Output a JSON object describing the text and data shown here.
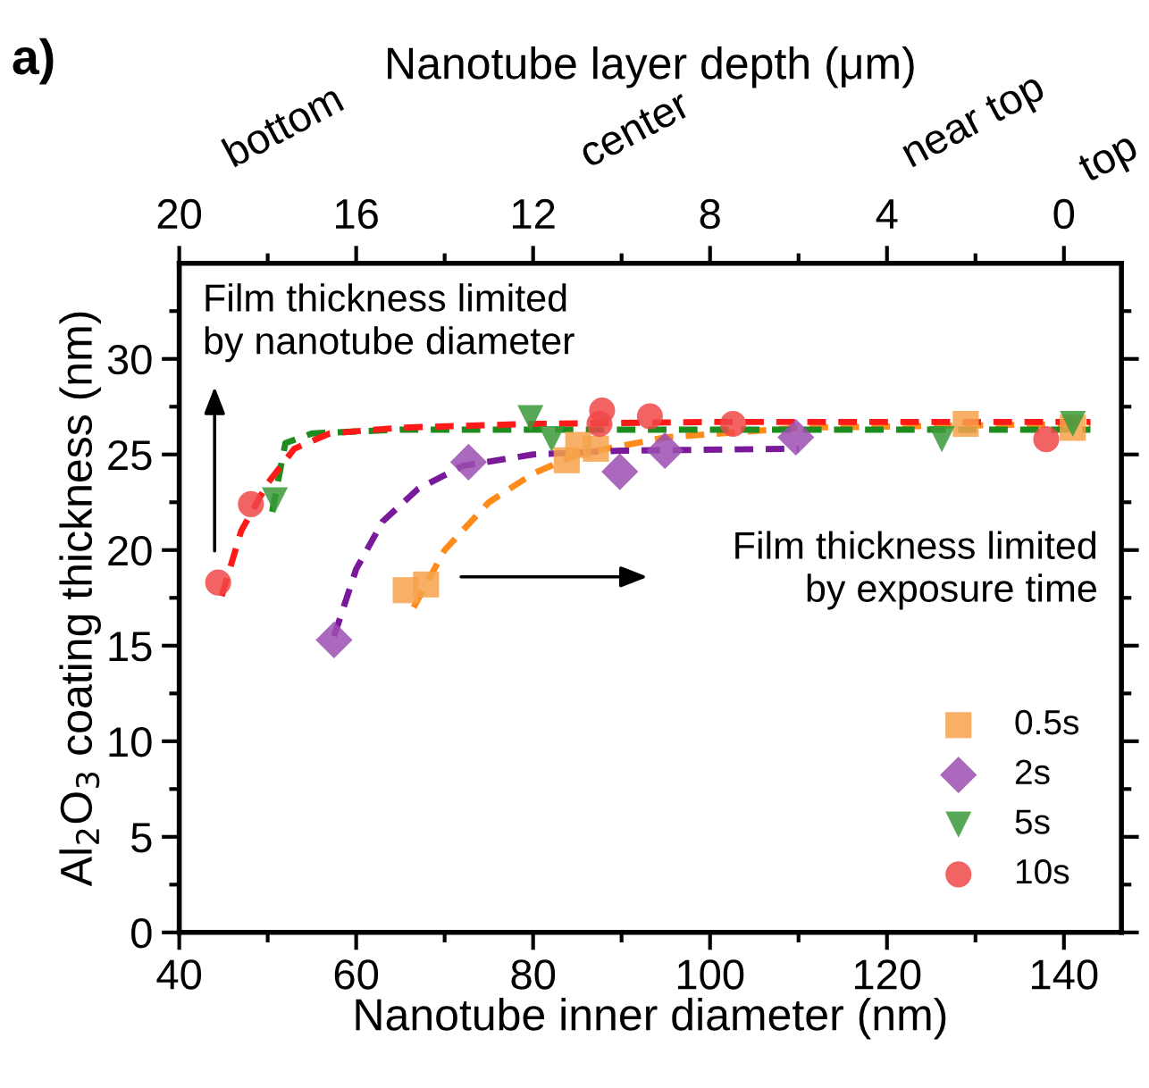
{
  "chart_data": {
    "type": "scatter",
    "xlabel": "Nanotube inner diameter (nm)",
    "ylabel": "Al$_{2}$O$_{3}$ coating thickness (nm)",
    "x2label": "Nanotube layer depth (μm)",
    "xlim": [
      40,
      146.5
    ],
    "ylim": [
      0,
      35
    ],
    "x2lim": [
      20,
      -1.3
    ],
    "xticks": [
      40,
      {
        "value": 50,
        "label": null
      },
      60,
      {
        "value": 70,
        "label": null
      },
      80,
      {
        "value": 90,
        "label": null
      },
      100,
      {
        "value": 110,
        "label": null
      },
      120,
      {
        "value": 130,
        "label": null
      },
      140
    ],
    "yticks": [
      0,
      {
        "value": 2.5,
        "label": null
      },
      5,
      {
        "value": 7.5,
        "label": null
      },
      10,
      {
        "value": 12.5,
        "label": null
      },
      15,
      {
        "value": 17.5,
        "label": null
      },
      20,
      {
        "value": 22.5,
        "label": null
      },
      25,
      {
        "value": 27.5,
        "label": null
      },
      30,
      {
        "value": 32.5,
        "label": null
      }
    ],
    "x2ticks": [
      20,
      {
        "value": 18,
        "label": null
      },
      16,
      {
        "value": 14,
        "label": null
      },
      12,
      {
        "value": 10,
        "label": null
      },
      8,
      {
        "value": 6,
        "label": null
      },
      4,
      {
        "value": 2,
        "label": null
      },
      0
    ],
    "grid": false,
    "legend": "bottom right",
    "annotations": [
      "a)",
      "bottom",
      "center",
      "near top",
      "top",
      "Film thickness limited\nby nanotube diameter",
      "Film thickness limited\nby exposure time"
    ],
    "series": [
      {
        "type": "line",
        "line_style": "dashed",
        "marker": "none",
        "color": "#ff8c1a",
        "x": [
          66.5,
          70,
          75,
          80,
          85,
          95,
          110,
          143
        ],
        "values": [
          17,
          20,
          22.5,
          24,
          25,
          25.9,
          26.4,
          26.6
        ]
      },
      {
        "type": "line",
        "line_style": "dashed",
        "marker": "none",
        "color": "#7a1a9a",
        "x": [
          57.5,
          60,
          63,
          67,
          72,
          80,
          90,
          110
        ],
        "values": [
          15.5,
          19,
          21.5,
          23.2,
          24.4,
          25,
          25.2,
          25.3
        ]
      },
      {
        "type": "line",
        "line_style": "dashed",
        "marker": "none",
        "color": "#1e8c1e",
        "x": [
          50.5,
          52,
          55,
          65,
          143
        ],
        "values": [
          22,
          25.6,
          26.1,
          26.3,
          26.3
        ]
      },
      {
        "type": "line",
        "line_style": "dashed",
        "marker": "none",
        "color": "#ff1a1a",
        "x": [
          44.8,
          47,
          50,
          53,
          57,
          65,
          80,
          100,
          143
        ],
        "values": [
          17.6,
          21,
          23.5,
          25.3,
          26.1,
          26.4,
          26.6,
          26.7,
          26.7
        ]
      },
      {
        "name": "0.5s",
        "marker": "square",
        "color": "#f7a24b",
        "x": [
          65.6,
          67.9,
          83.8,
          85.1,
          87.1,
          128.9,
          141
        ],
        "values": [
          17.9,
          18.2,
          24.7,
          25.5,
          25.3,
          26.6,
          26.4
        ]
      },
      {
        "name": "2s",
        "marker": "diamond",
        "color": "#9b4fb0",
        "x": [
          57.5,
          72.7,
          89.8,
          94.9,
          109.7
        ],
        "values": [
          15.3,
          24.6,
          24.1,
          25.2,
          25.9
        ]
      },
      {
        "name": "5s",
        "marker": "triangle",
        "color": "#3a9a3a",
        "x": [
          50.8,
          79.7,
          82.1,
          126.2,
          141
        ],
        "values": [
          22.6,
          26.9,
          25.8,
          25.8,
          26.6
        ]
      },
      {
        "name": "10s",
        "marker": "circle",
        "color": "#f04848",
        "x": [
          44.4,
          48.1,
          87.8,
          87.5,
          93.2,
          102.6,
          138
        ],
        "values": [
          18.3,
          22.4,
          27.3,
          26.6,
          27.0,
          26.6,
          25.8
        ]
      }
    ]
  }
}
